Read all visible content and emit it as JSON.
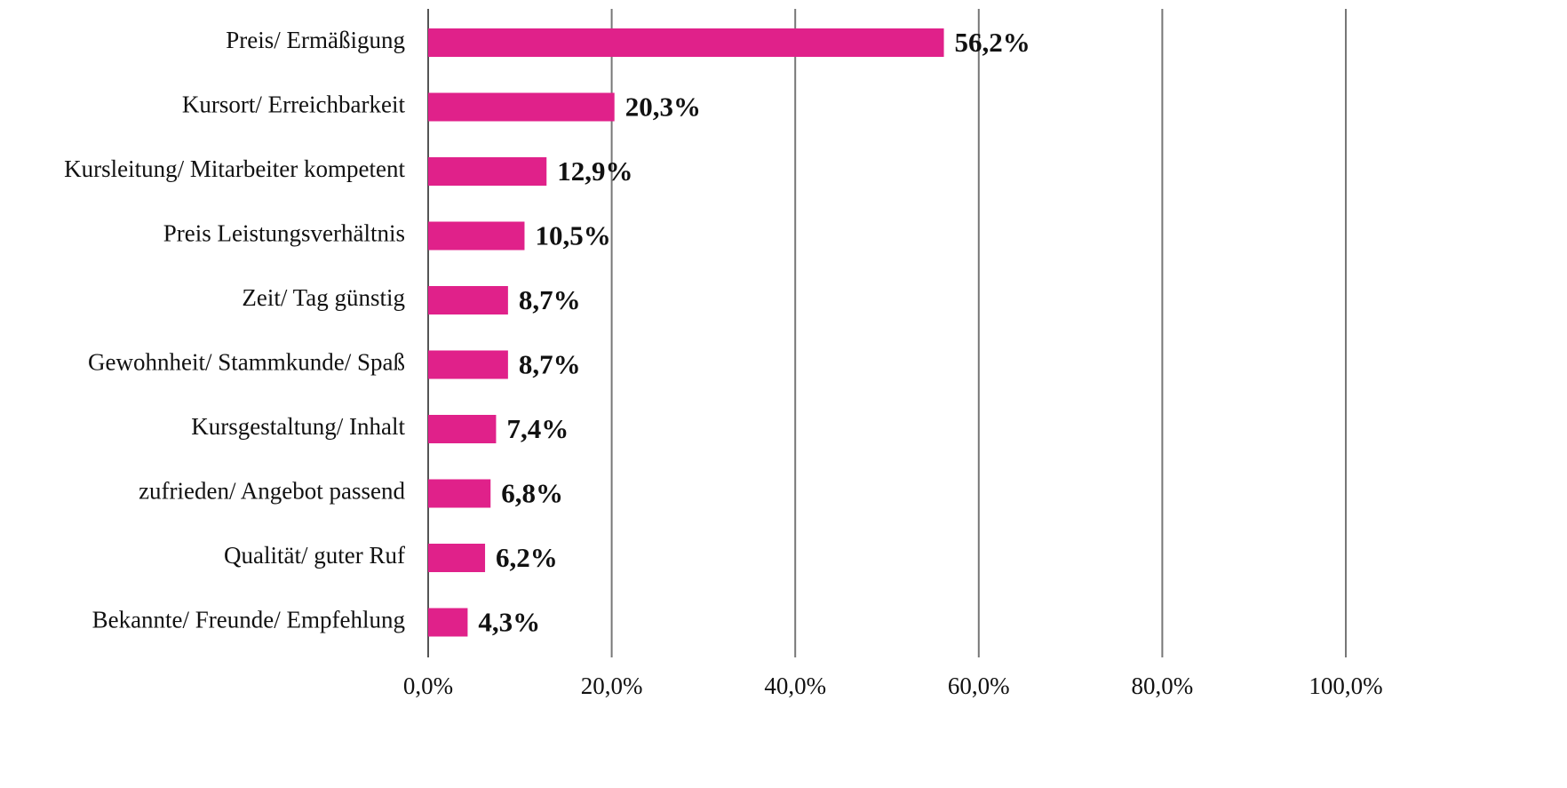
{
  "chart_data": {
    "type": "hbar",
    "categories": [
      "Preis/ Ermäßigung",
      "Kursort/ Erreichbarkeit",
      "Kursleitung/ Mitarbeiter kompetent",
      "Preis Leistungsverhältnis",
      "Zeit/ Tag günstig",
      "Gewohnheit/ Stammkunde/ Spaß",
      "Kursgestaltung/ Inhalt",
      "zufrieden/ Angebot passend",
      "Qualität/ guter Ruf",
      "Bekannte/ Freunde/ Empfehlung"
    ],
    "values": [
      56.2,
      20.3,
      12.9,
      10.5,
      8.7,
      8.7,
      7.4,
      6.8,
      6.2,
      4.3
    ],
    "value_labels": [
      "56,2%",
      "20,3%",
      "12,9%",
      "10,5%",
      "8,7%",
      "8,7%",
      "7,4%",
      "6,8%",
      "6,2%",
      "4,3%"
    ],
    "color": "#e0218a",
    "xlim": [
      0,
      100
    ],
    "xticks": [
      {
        "value": 0,
        "label": "0,0%"
      },
      {
        "value": 20,
        "label": "20,0%"
      },
      {
        "value": 40,
        "label": "40,0%"
      },
      {
        "value": 60,
        "label": "60,0%"
      },
      {
        "value": 80,
        "label": "80,0%"
      },
      {
        "value": 100,
        "label": "100,0%"
      }
    ],
    "grid": true
  }
}
